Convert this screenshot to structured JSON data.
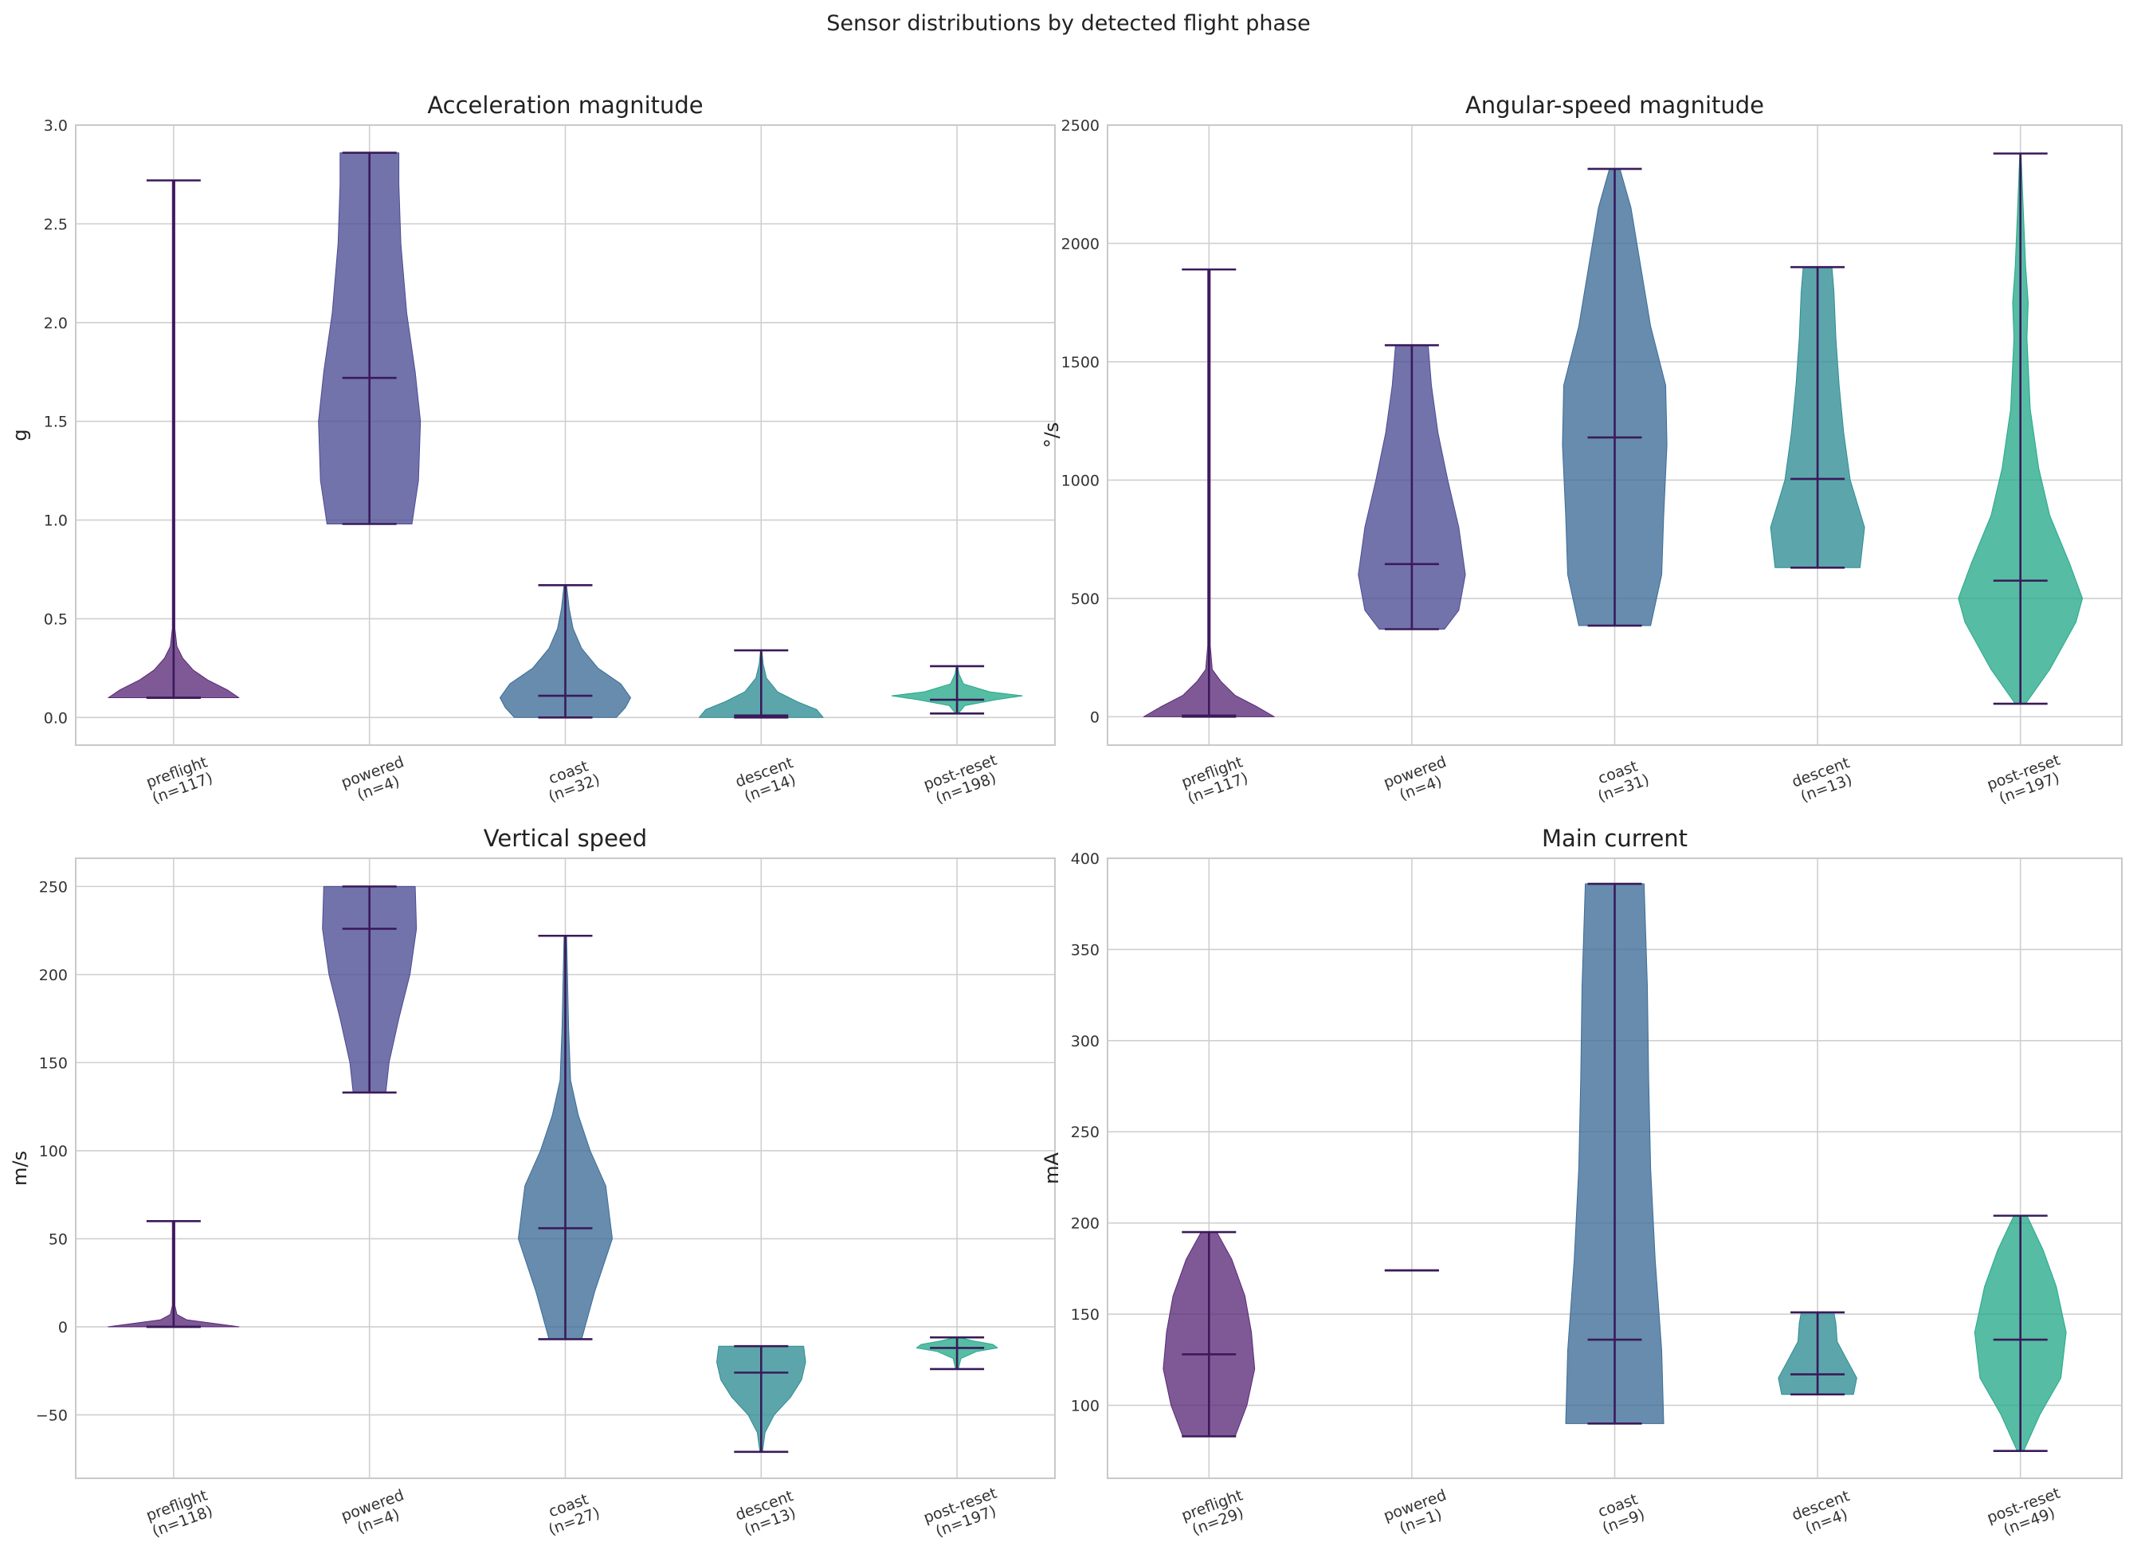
{
  "figure_title": "Sensor distributions by detected flight phase",
  "colors": {
    "preflight": "#5a2a78",
    "powered": "#4b4b94",
    "coast": "#3c6c97",
    "descent": "#2e8d93",
    "post-reset": "#27a98a",
    "stat_line": "#3a1a5a"
  },
  "chart_data": [
    {
      "type": "violin",
      "title": "Acceleration magnitude",
      "ylabel": "g",
      "ylim": [
        -0.14,
        3.0
      ],
      "yticks": [
        0.0,
        0.5,
        1.0,
        1.5,
        2.0,
        2.5,
        3.0
      ],
      "ytick_labels": [
        "0.0",
        "0.5",
        "1.0",
        "1.5",
        "2.0",
        "2.5",
        "3.0"
      ],
      "categories": [
        "preflight\n(n=117)",
        "powered\n(n=4)",
        "coast\n(n=32)",
        "descent\n(n=14)",
        "post-reset\n(n=198)"
      ],
      "series": [
        {
          "phase": "preflight",
          "min": 0.1,
          "median": 0.1,
          "max": 2.72,
          "shape": [
            [
              0.1,
              1.0
            ],
            [
              0.14,
              0.82
            ],
            [
              0.19,
              0.52
            ],
            [
              0.24,
              0.3
            ],
            [
              0.3,
              0.14
            ],
            [
              0.36,
              0.05
            ],
            [
              0.45,
              0.02
            ],
            [
              2.72,
              0.02
            ]
          ]
        },
        {
          "phase": "powered",
          "min": 0.98,
          "median": 1.72,
          "max": 2.86,
          "shape": [
            [
              0.98,
              0.65
            ],
            [
              1.2,
              0.75
            ],
            [
              1.5,
              0.78
            ],
            [
              1.75,
              0.7
            ],
            [
              2.05,
              0.57
            ],
            [
              2.4,
              0.48
            ],
            [
              2.7,
              0.45
            ],
            [
              2.86,
              0.45
            ]
          ]
        },
        {
          "phase": "coast",
          "min": 0.0,
          "median": 0.11,
          "max": 0.67,
          "shape": [
            [
              0.0,
              0.78
            ],
            [
              0.05,
              0.92
            ],
            [
              0.1,
              1.0
            ],
            [
              0.17,
              0.85
            ],
            [
              0.25,
              0.5
            ],
            [
              0.35,
              0.25
            ],
            [
              0.45,
              0.12
            ],
            [
              0.55,
              0.06
            ],
            [
              0.67,
              0.02
            ]
          ]
        },
        {
          "phase": "descent",
          "min": 0.0,
          "median": 0.01,
          "max": 0.34,
          "shape": [
            [
              0.0,
              0.95
            ],
            [
              0.04,
              0.85
            ],
            [
              0.08,
              0.55
            ],
            [
              0.13,
              0.25
            ],
            [
              0.2,
              0.08
            ],
            [
              0.27,
              0.03
            ],
            [
              0.34,
              0.01
            ]
          ]
        },
        {
          "phase": "post-reset",
          "min": 0.02,
          "median": 0.09,
          "max": 0.26,
          "shape": [
            [
              0.02,
              0.02
            ],
            [
              0.06,
              0.12
            ],
            [
              0.09,
              0.6
            ],
            [
              0.11,
              1.0
            ],
            [
              0.13,
              0.5
            ],
            [
              0.17,
              0.1
            ],
            [
              0.22,
              0.03
            ],
            [
              0.26,
              0.01
            ]
          ]
        }
      ]
    },
    {
      "type": "violin",
      "title": "Angular-speed magnitude",
      "ylabel": "°/s",
      "ylim": [
        -120,
        2500
      ],
      "yticks": [
        0,
        500,
        1000,
        1500,
        2000,
        2500
      ],
      "ytick_labels": [
        "0",
        "500",
        "1000",
        "1500",
        "2000",
        "2500"
      ],
      "categories": [
        "preflight\n(n=117)",
        "powered\n(n=4)",
        "coast\n(n=31)",
        "descent\n(n=13)",
        "post-reset\n(n=197)"
      ],
      "series": [
        {
          "phase": "preflight",
          "min": 0,
          "median": 5,
          "max": 1890,
          "shape": [
            [
              0,
              1.0
            ],
            [
              40,
              0.75
            ],
            [
              90,
              0.4
            ],
            [
              150,
              0.18
            ],
            [
              200,
              0.05
            ],
            [
              300,
              0.02
            ],
            [
              1890,
              0.02
            ]
          ]
        },
        {
          "phase": "powered",
          "min": 370,
          "median": 645,
          "max": 1570,
          "shape": [
            [
              370,
              0.5
            ],
            [
              450,
              0.72
            ],
            [
              600,
              0.82
            ],
            [
              800,
              0.72
            ],
            [
              1000,
              0.55
            ],
            [
              1200,
              0.4
            ],
            [
              1400,
              0.3
            ],
            [
              1570,
              0.25
            ]
          ]
        },
        {
          "phase": "coast",
          "min": 385,
          "median": 1180,
          "max": 2315,
          "shape": [
            [
              385,
              0.55
            ],
            [
              600,
              0.72
            ],
            [
              850,
              0.75
            ],
            [
              1150,
              0.8
            ],
            [
              1400,
              0.78
            ],
            [
              1650,
              0.55
            ],
            [
              1900,
              0.4
            ],
            [
              2150,
              0.25
            ],
            [
              2315,
              0.08
            ]
          ]
        },
        {
          "phase": "descent",
          "min": 630,
          "median": 1005,
          "max": 1900,
          "shape": [
            [
              630,
              0.65
            ],
            [
              800,
              0.72
            ],
            [
              1000,
              0.5
            ],
            [
              1200,
              0.4
            ],
            [
              1400,
              0.33
            ],
            [
              1600,
              0.28
            ],
            [
              1800,
              0.25
            ],
            [
              1900,
              0.22
            ]
          ]
        },
        {
          "phase": "post-reset",
          "min": 55,
          "median": 575,
          "max": 2380,
          "shape": [
            [
              55,
              0.08
            ],
            [
              200,
              0.45
            ],
            [
              400,
              0.85
            ],
            [
              500,
              0.95
            ],
            [
              650,
              0.75
            ],
            [
              850,
              0.45
            ],
            [
              1050,
              0.28
            ],
            [
              1300,
              0.15
            ],
            [
              1600,
              0.1
            ],
            [
              1750,
              0.12
            ],
            [
              1900,
              0.08
            ],
            [
              2100,
              0.05
            ],
            [
              2380,
              0.01
            ]
          ]
        }
      ]
    },
    {
      "type": "violin",
      "title": "Vertical speed",
      "ylabel": "m/s",
      "ylim": [
        -86,
        266
      ],
      "yticks": [
        -50,
        0,
        50,
        100,
        150,
        200,
        250
      ],
      "ytick_labels": [
        "−50",
        "0",
        "50",
        "100",
        "150",
        "200",
        "250"
      ],
      "categories": [
        "preflight\n(n=118)",
        "powered\n(n=4)",
        "coast\n(n=27)",
        "descent\n(n=13)",
        "post-reset\n(n=197)"
      ],
      "series": [
        {
          "phase": "preflight",
          "min": 0,
          "median": 0,
          "max": 60,
          "shape": [
            [
              0,
              1.0
            ],
            [
              2,
              0.6
            ],
            [
              4,
              0.2
            ],
            [
              7,
              0.05
            ],
            [
              12,
              0.02
            ],
            [
              60,
              0.02
            ]
          ]
        },
        {
          "phase": "powered",
          "min": 133,
          "median": 226,
          "max": 250,
          "shape": [
            [
              133,
              0.25
            ],
            [
              150,
              0.3
            ],
            [
              175,
              0.45
            ],
            [
              200,
              0.62
            ],
            [
              226,
              0.72
            ],
            [
              250,
              0.7
            ]
          ]
        },
        {
          "phase": "coast",
          "min": -7,
          "median": 56,
          "max": 222,
          "shape": [
            [
              -7,
              0.25
            ],
            [
              20,
              0.45
            ],
            [
              50,
              0.72
            ],
            [
              80,
              0.62
            ],
            [
              100,
              0.38
            ],
            [
              120,
              0.2
            ],
            [
              140,
              0.08
            ],
            [
              170,
              0.05
            ],
            [
              222,
              0.02
            ]
          ]
        },
        {
          "phase": "descent",
          "min": -71,
          "median": -26,
          "max": -11,
          "shape": [
            [
              -71,
              0.02
            ],
            [
              -60,
              0.06
            ],
            [
              -50,
              0.2
            ],
            [
              -40,
              0.45
            ],
            [
              -30,
              0.62
            ],
            [
              -20,
              0.68
            ],
            [
              -11,
              0.65
            ]
          ]
        },
        {
          "phase": "post-reset",
          "min": -24,
          "median": -12,
          "max": -6,
          "shape": [
            [
              -24,
              0.02
            ],
            [
              -18,
              0.06
            ],
            [
              -14,
              0.3
            ],
            [
              -12,
              0.62
            ],
            [
              -10,
              0.55
            ],
            [
              -8,
              0.25
            ],
            [
              -6,
              0.03
            ]
          ]
        }
      ]
    },
    {
      "type": "violin",
      "title": "Main current",
      "ylabel": "mA",
      "ylim": [
        60,
        400
      ],
      "yticks": [
        100,
        150,
        200,
        250,
        300,
        350,
        400
      ],
      "ytick_labels": [
        "100",
        "150",
        "200",
        "250",
        "300",
        "350",
        "400"
      ],
      "categories": [
        "preflight\n(n=29)",
        "powered\n(n=1)",
        "coast\n(n=9)",
        "descent\n(n=4)",
        "post-reset\n(n=49)"
      ],
      "series": [
        {
          "phase": "preflight",
          "min": 83,
          "median": 128,
          "max": 195,
          "shape": [
            [
              83,
              0.4
            ],
            [
              100,
              0.58
            ],
            [
              120,
              0.7
            ],
            [
              140,
              0.65
            ],
            [
              160,
              0.55
            ],
            [
              180,
              0.35
            ],
            [
              195,
              0.12
            ]
          ]
        },
        {
          "phase": "powered",
          "min": 174,
          "median": 174,
          "max": 174,
          "shape": []
        },
        {
          "phase": "coast",
          "min": 90,
          "median": 136,
          "max": 386,
          "shape": [
            [
              90,
              0.75
            ],
            [
              130,
              0.72
            ],
            [
              180,
              0.62
            ],
            [
              230,
              0.55
            ],
            [
              280,
              0.52
            ],
            [
              330,
              0.5
            ],
            [
              386,
              0.45
            ]
          ]
        },
        {
          "phase": "descent",
          "min": 106,
          "median": 117,
          "max": 151,
          "shape": [
            [
              106,
              0.55
            ],
            [
              115,
              0.6
            ],
            [
              125,
              0.45
            ],
            [
              135,
              0.3
            ],
            [
              145,
              0.28
            ],
            [
              151,
              0.25
            ]
          ]
        },
        {
          "phase": "post-reset",
          "min": 75,
          "median": 136,
          "max": 204,
          "shape": [
            [
              75,
              0.05
            ],
            [
              95,
              0.3
            ],
            [
              115,
              0.62
            ],
            [
              140,
              0.7
            ],
            [
              165,
              0.55
            ],
            [
              185,
              0.35
            ],
            [
              204,
              0.1
            ]
          ]
        }
      ]
    }
  ]
}
